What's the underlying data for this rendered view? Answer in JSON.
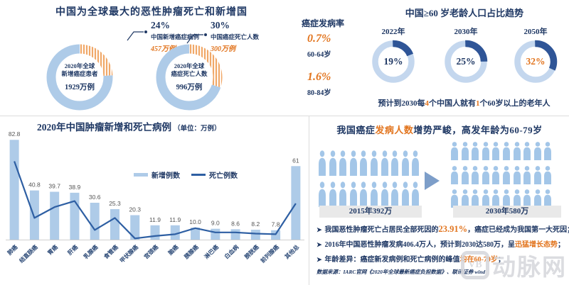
{
  "colors": {
    "navy": "#1F3864",
    "orange": "#E2751F",
    "light_blue": "#AECBE8",
    "royal_blue": "#2F5597",
    "line_blue": "#2E5FA3",
    "strip_gray": "#E9E9E9",
    "border_gray": "#DCDCDC"
  },
  "chart_data": [
    {
      "id": "global-share-donuts",
      "type": "pie",
      "title": "中国为全球最大的恶性肿瘤死亡和新增国",
      "donuts": [
        {
          "china_pct": 24,
          "china_pct_label": "24%",
          "china_label": "中国新增癌症病例",
          "china_value": "457万例",
          "total_line1": "2020年全球",
          "total_line2": "新增癌症患者",
          "total_value": "1929万例"
        },
        {
          "china_pct": 30,
          "china_pct_label": "30%",
          "china_label": "中国癌症死亡人数",
          "china_value": "300万例",
          "total_line1": "2020年全球",
          "total_line2": "癌症死亡人数",
          "total_value": "996万例"
        }
      ]
    },
    {
      "id": "incidence-rates",
      "type": "stat",
      "title": "癌症发病率",
      "items": [
        {
          "value": "0.7%",
          "label": "60-64岁"
        },
        {
          "value": "1.6%",
          "label": "80-84岁"
        }
      ]
    },
    {
      "id": "aging-trend-donuts",
      "type": "pie",
      "title": "中国≥60 岁老龄人口占比趋势",
      "categories": [
        "2022年",
        "2030年",
        "2050年"
      ],
      "values": [
        19,
        25,
        32
      ],
      "value_labels": [
        "19%",
        "25%",
        "32%"
      ],
      "highlight_index": 2,
      "note_parts": [
        {
          "t": "预计到2030每"
        },
        {
          "t": "4",
          "hl": true
        },
        {
          "t": "个中国人就有"
        },
        {
          "t": "1",
          "hl": true
        },
        {
          "t": "个60岁以上的老年人"
        }
      ]
    },
    {
      "id": "cancer-cases-2020",
      "type": "bar",
      "title": "2020年中国肿瘤新增和死亡病例",
      "unit_label": "（单位：万例）",
      "legend": [
        "新增例数",
        "死亡例数"
      ],
      "categories": [
        "肺癌",
        "结直肠癌",
        "胃癌",
        "肝癌",
        "乳腺癌",
        "食管癌",
        "甲状腺癌",
        "宫颈癌",
        "脑癌",
        "胰腺癌",
        "淋巴癌",
        "白血病",
        "膀胱癌",
        "前列腺癌",
        "其他总"
      ],
      "series": [
        {
          "name": "新增例数",
          "type": "bar",
          "values": [
            82.8,
            40.8,
            39.7,
            38.9,
            30.6,
            25.3,
            20.3,
            11.9,
            11.9,
            10.0,
            9.0,
            8.6,
            8.2,
            7.8,
            61
          ],
          "labels": [
            "82.8",
            "40.8",
            "39.7",
            "38.9",
            "30.6",
            "25.3",
            "20.3",
            "11.9",
            "11.9",
            "10.0",
            "9.0",
            "8.6",
            "8.2",
            "7.8",
            "61"
          ]
        },
        {
          "name": "死亡例数",
          "type": "line",
          "values_estimated": [
            65,
            18,
            27,
            32,
            8,
            18,
            1,
            3,
            4.5,
            9.5,
            6,
            6,
            5,
            4.5,
            30
          ]
        }
      ],
      "ylim": [
        0,
        90
      ],
      "grid": false,
      "legend_position": "inside-top-middle"
    },
    {
      "id": "incidence-growth-pictogram",
      "type": "pictogram",
      "title_parts": [
        {
          "t": "我国癌症"
        },
        {
          "t": "发病人数",
          "hl": true
        },
        {
          "t": "增势严峻，高发年龄为60-79岁"
        }
      ],
      "groups": [
        {
          "label": "2015年392万",
          "rows": 2,
          "cols": 10
        },
        {
          "label": "2030年580万",
          "rows": 3,
          "cols": 10
        }
      ],
      "bullets": [
        {
          "parts": [
            {
              "t": "我国恶性肿瘤死亡占居民全部死因的"
            },
            {
              "t": "23.91%",
              "hl": true,
              "big": true
            },
            {
              "t": "，癌症已经成为我国第一大死因；"
            }
          ]
        },
        {
          "parts": [
            {
              "t": "2016年中国恶性肿瘤发病406.4万人，预计到2030达580万，呈"
            },
            {
              "t": "迅猛增长态势",
              "hl": true
            },
            {
              "t": "；"
            }
          ]
        },
        {
          "parts": [
            {
              "t": "年龄差异：癌症新发病例和死亡病例的峰值"
            },
            {
              "t": "均在60-79岁",
              "hl": true
            },
            {
              "t": "；"
            }
          ]
        }
      ],
      "source": "数据来源：IARC官网《2020年全球最新癌症负担数据》、联讯证券 wind"
    }
  ],
  "watermark": {
    "text": "动脉网",
    "logo": "VB"
  }
}
